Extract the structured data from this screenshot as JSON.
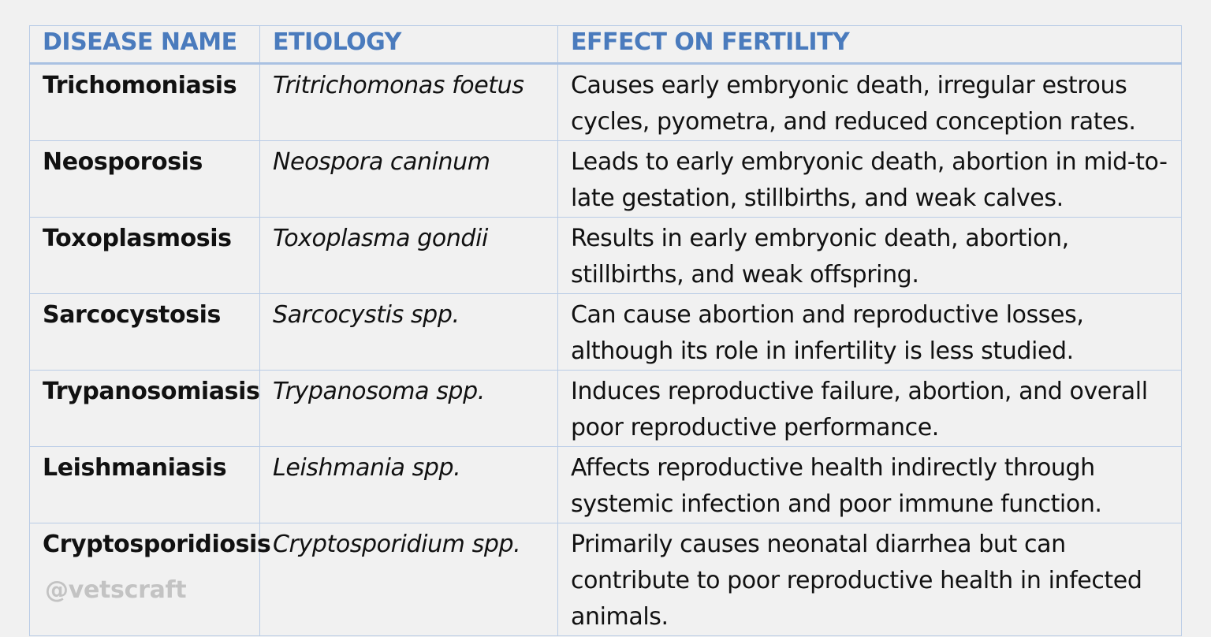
{
  "table": {
    "headers": [
      "DISEASE NAME",
      "ETIOLOGY",
      "EFFECT ON FERTILITY"
    ],
    "rows": [
      {
        "disease": "Trichomoniasis",
        "etiology": "Tritrichomonas foetus",
        "effect": "Causes early embryonic death, irregular estrous cycles, pyometra, and reduced conception rates."
      },
      {
        "disease": "Neosporosis",
        "etiology": "Neospora caninum",
        "effect": "Leads to early embryonic death, abortion in mid-to-late gestation, stillbirths, and weak calves."
      },
      {
        "disease": "Toxoplasmosis",
        "etiology": "Toxoplasma gondii",
        "effect": "Results in early embryonic death, abortion, stillbirths, and weak offspring."
      },
      {
        "disease": "Sarcocystosis",
        "etiology": "Sarcocystis spp.",
        "effect": "Can cause abortion and reproductive losses, although its role in infertility is less studied."
      },
      {
        "disease": "Trypanosomiasis",
        "etiology": "Trypanosoma spp.",
        "effect": "Induces reproductive failure, abortion, and overall poor reproductive performance."
      },
      {
        "disease": "Leishmaniasis",
        "etiology": "Leishmania spp.",
        "effect": "Affects reproductive health indirectly through systemic infection and poor immune function."
      },
      {
        "disease": "Cryptosporidiosis",
        "etiology": "Cryptosporidium spp.",
        "effect": "Primarily causes neonatal diarrhea but can contribute to poor reproductive health in infected animals."
      }
    ]
  },
  "watermark": "@vetscraft",
  "colors": {
    "background": "#f1f1f1",
    "header_text": "#4a7bbd",
    "border": "#b9cce6",
    "watermark": "#c3c3c3"
  }
}
